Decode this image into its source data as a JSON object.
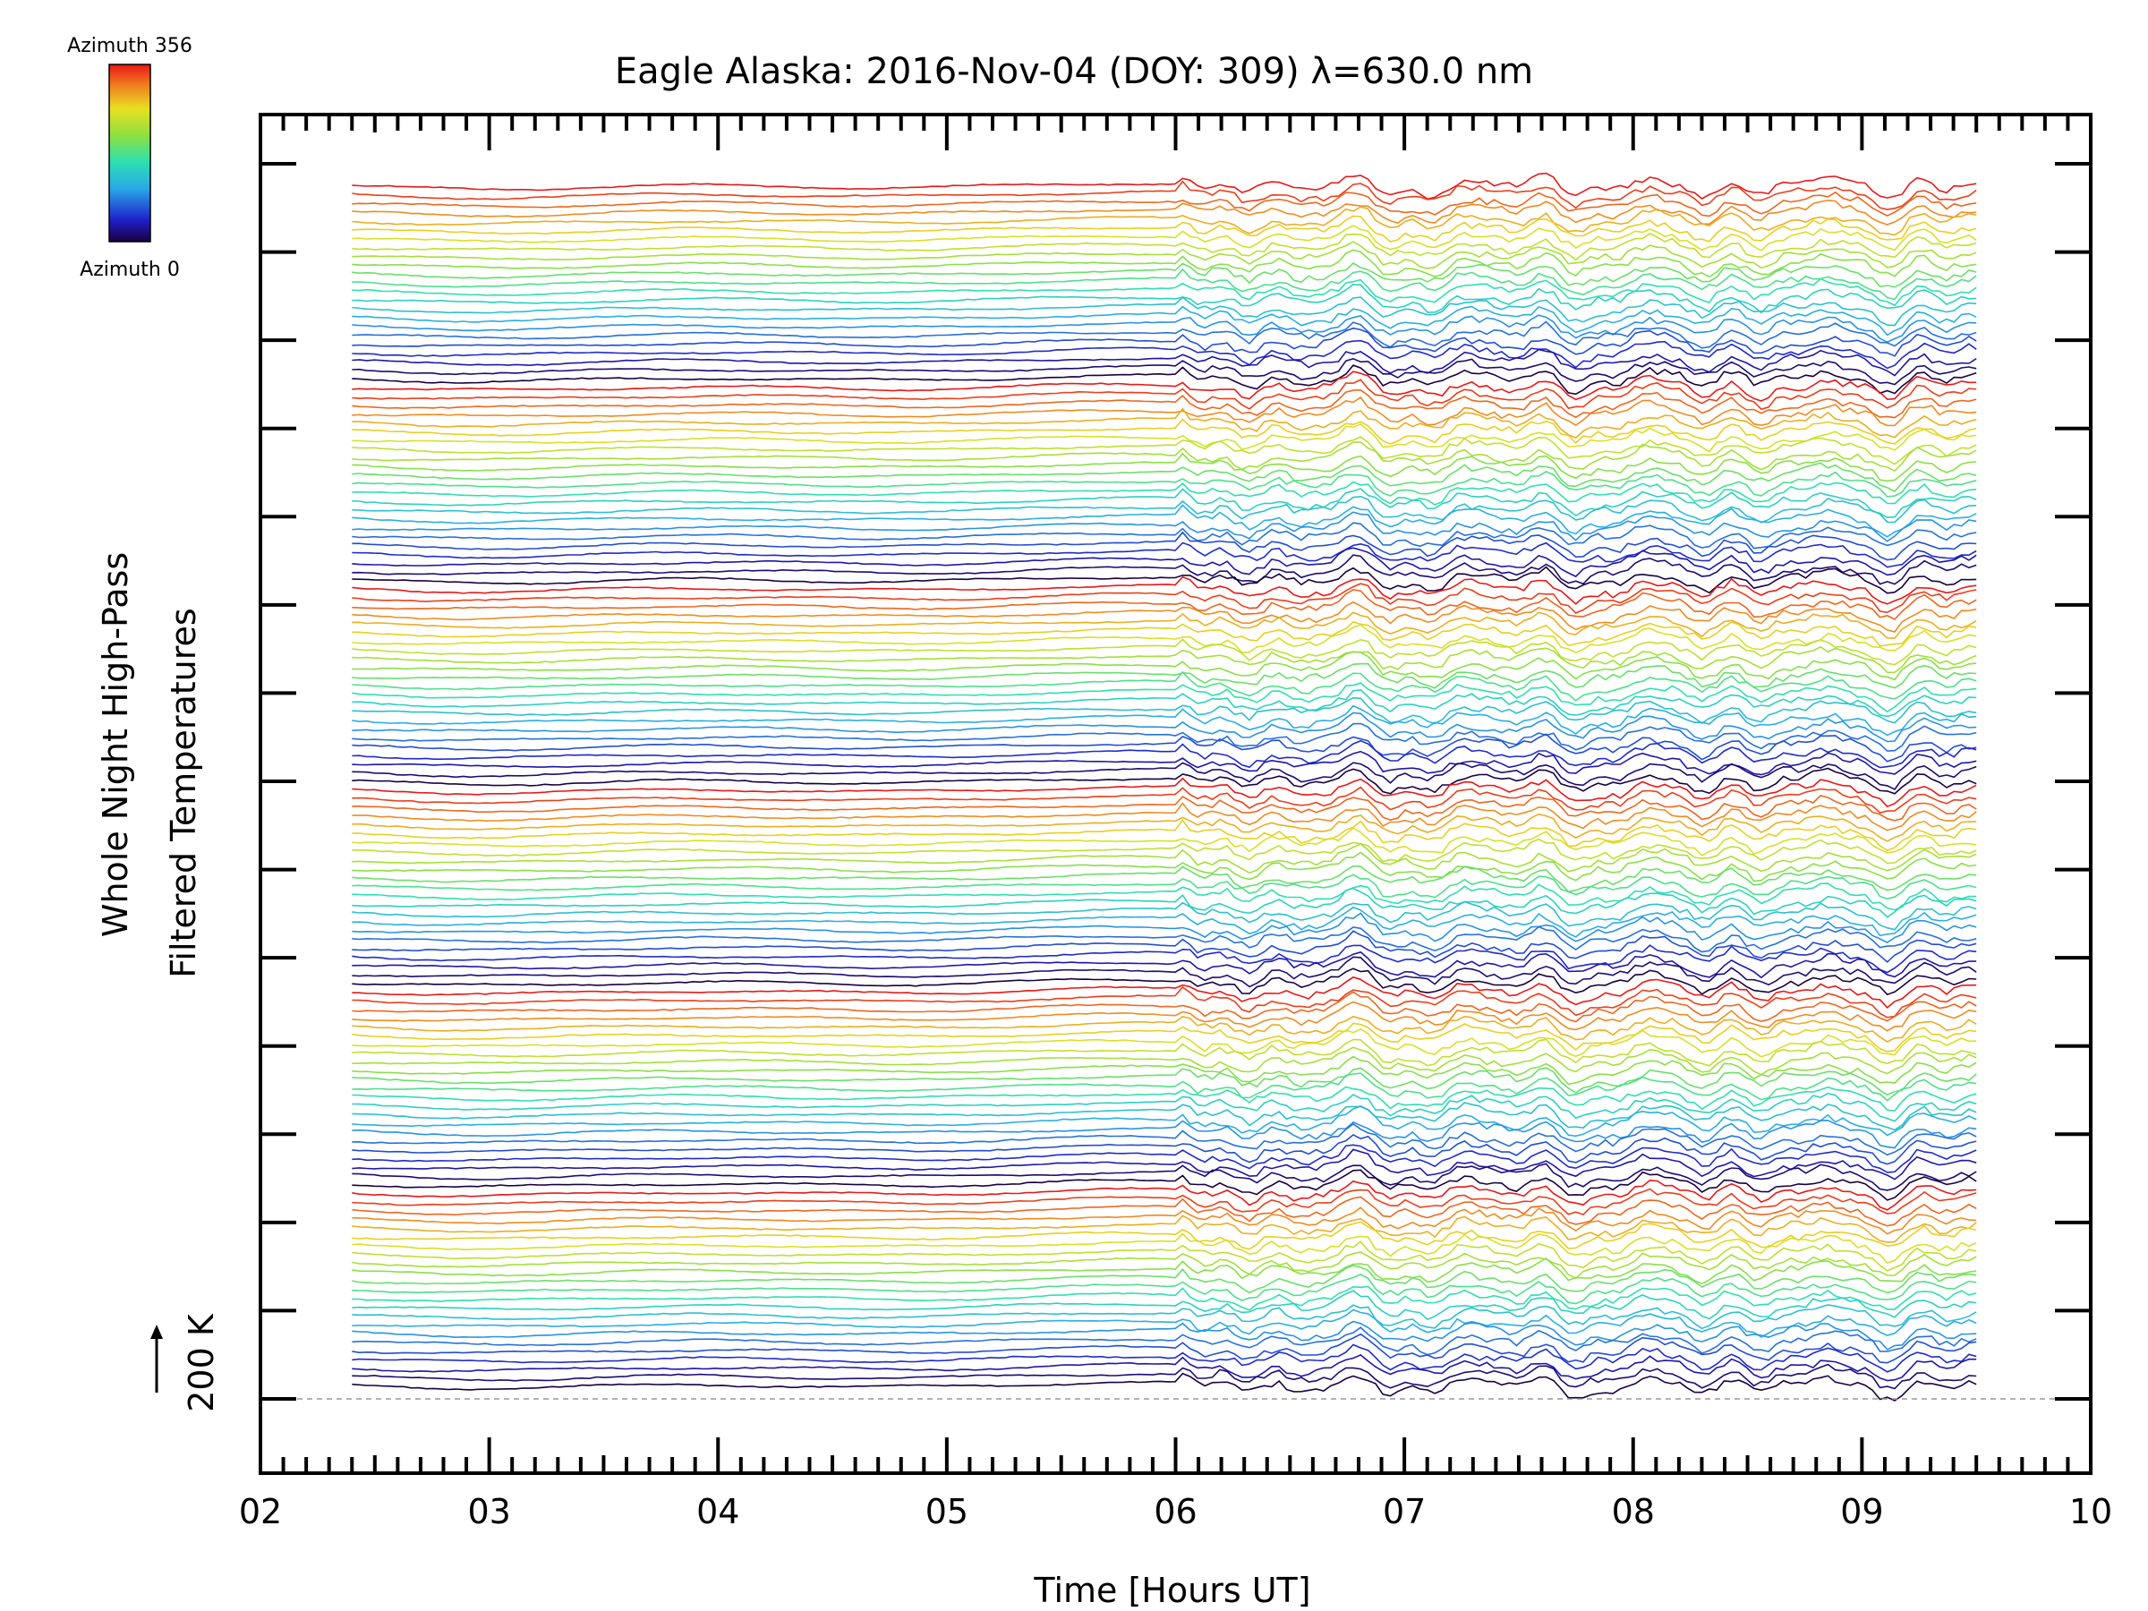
{
  "chart_data": {
    "type": "line",
    "title": "Eagle Alaska: 2016-Nov-04 (DOY: 309) λ=630.0 nm",
    "xlabel": "Time [Hours UT]",
    "ylabel_line1": "Whole Night High-Pass",
    "ylabel_line2": "Filtered Temperatures",
    "scale_label": "200 K",
    "xlim": [
      2,
      10
    ],
    "x_ticks": [
      "02",
      "03",
      "04",
      "05",
      "06",
      "07",
      "08",
      "09",
      "10"
    ],
    "data_start_hour": 2.4,
    "data_end_hour": 9.5,
    "dense_sampling_start_hour": 6.0,
    "trace_count": 138,
    "azimuth_groups": 6,
    "colorbar": {
      "top_label": "Azimuth 356",
      "bottom_label": "Azimuth 0",
      "min": 0,
      "max": 356,
      "colormap": "rainbow"
    },
    "baseline_dashed": true
  }
}
